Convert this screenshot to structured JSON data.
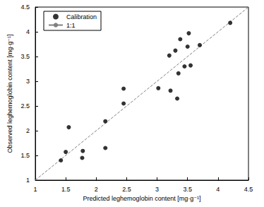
{
  "chart_data": {
    "type": "scatter",
    "x_label": "Predicted leghemoglobin content [mg·g⁻¹]",
    "y_label": "Observed leghemoglobin content [mg·g⁻¹]",
    "series": [
      {
        "name": "Calibration",
        "type": "scatter",
        "marker": "circle",
        "color": "#000000",
        "x": [
          1.42,
          1.5,
          1.55,
          1.77,
          1.78,
          2.15,
          2.15,
          2.45,
          2.45,
          3.02,
          3.2,
          3.22,
          3.3,
          3.33,
          3.35,
          3.38,
          3.45,
          3.5,
          3.52,
          3.55,
          3.7,
          4.2
        ],
        "values": [
          1.4,
          1.57,
          2.07,
          1.45,
          1.59,
          2.19,
          1.65,
          2.85,
          2.55,
          2.86,
          3.52,
          2.81,
          3.62,
          2.65,
          3.16,
          3.85,
          3.3,
          3.7,
          3.97,
          3.32,
          3.73,
          4.18
        ]
      },
      {
        "name": "1:1",
        "type": "line",
        "line_style": "dashed",
        "color": "#808080",
        "x": [
          1,
          4.5
        ],
        "values": [
          1,
          4.5
        ]
      }
    ],
    "xlim": [
      1,
      4.5
    ],
    "xticks": [
      1,
      1.5,
      2,
      2.5,
      3,
      3.5,
      4,
      4.5
    ],
    "ylim": [
      1,
      4.5
    ],
    "yticks": [
      1,
      1.5,
      2,
      2.5,
      3,
      3.5,
      4,
      4.5
    ],
    "grid": false,
    "legend": "upper left"
  }
}
